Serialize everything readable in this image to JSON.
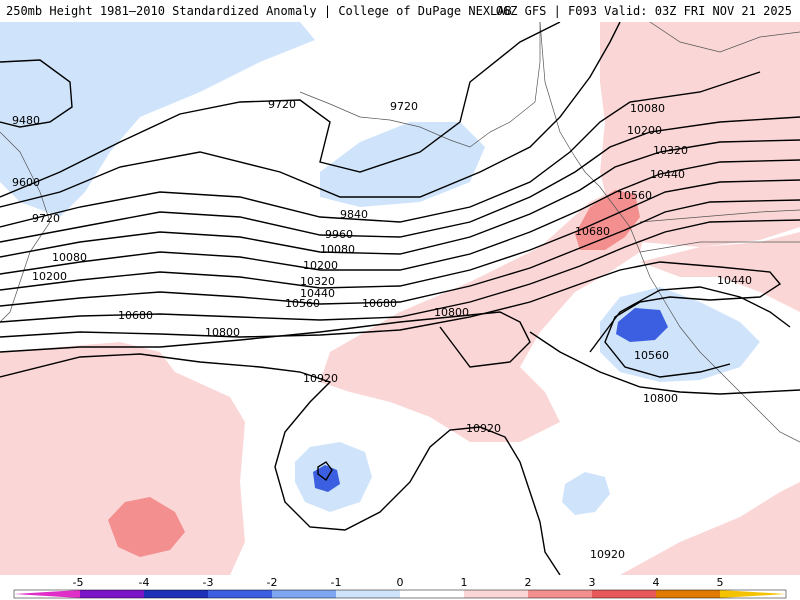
{
  "header": {
    "title": "250mb Height 1981–2010 Standardized Anomaly | College of DuPage NEXLAB",
    "run_info": "06Z GFS | F093 Valid: 03Z FRI NOV 21 2025"
  },
  "map": {
    "contour_labels": [
      "9480",
      "9600",
      "9720",
      "9720",
      "9720",
      "9840",
      "9960",
      "10080",
      "10080",
      "10200",
      "10200",
      "10320",
      "10440",
      "10560",
      "10680",
      "10680",
      "10800",
      "10920",
      "10920",
      "10920",
      "10080",
      "10200",
      "10320",
      "10440",
      "10560",
      "10680",
      "10440",
      "10560",
      "10800",
      "10800"
    ]
  },
  "colorbar": {
    "tick_labels": [
      "-5",
      "-4",
      "-3",
      "-2",
      "-1",
      "0",
      "1",
      "2",
      "3",
      "4",
      "5"
    ],
    "colors": {
      "neg5": "#e02ec8",
      "neg4": "#7b16c8",
      "neg35": "#1d30b8",
      "neg3": "#3b5fe0",
      "neg2": "#7fa6f0",
      "neg1": "#cfe4fb",
      "zero": "#ffffff",
      "pos1": "#fbd6d6",
      "pos2": "#f38f8f",
      "pos3": "#e85a5a",
      "pos35": "#b80e0e",
      "pos4": "#e07a00",
      "pos5": "#f5c200"
    }
  }
}
